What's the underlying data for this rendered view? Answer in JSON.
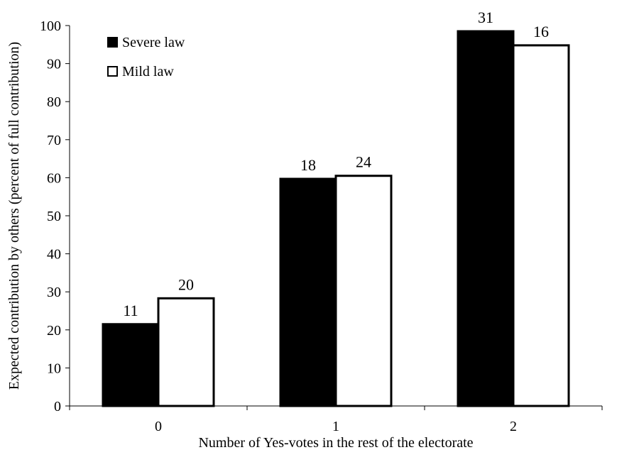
{
  "chart_data": {
    "type": "bar",
    "title": "",
    "xlabel": "Number of Yes-votes in the rest of the electorate",
    "ylabel": "Expected contribution by others (percent of full contribution)",
    "categories": [
      "0",
      "1",
      "2"
    ],
    "ylim": [
      0,
      100
    ],
    "yticks": [
      0,
      10,
      20,
      30,
      40,
      50,
      60,
      70,
      80,
      90,
      100
    ],
    "grid": false,
    "legend_position": "top-left",
    "series": [
      {
        "name": "Severe law",
        "color": "#000000",
        "values": [
          21.5,
          59.7,
          98.5
        ],
        "labels": [
          "11",
          "18",
          "31"
        ]
      },
      {
        "name": "Mild law",
        "color": "#ffffff",
        "values": [
          28.3,
          60.5,
          94.8
        ],
        "labels": [
          "20",
          "24",
          "16"
        ]
      }
    ]
  }
}
